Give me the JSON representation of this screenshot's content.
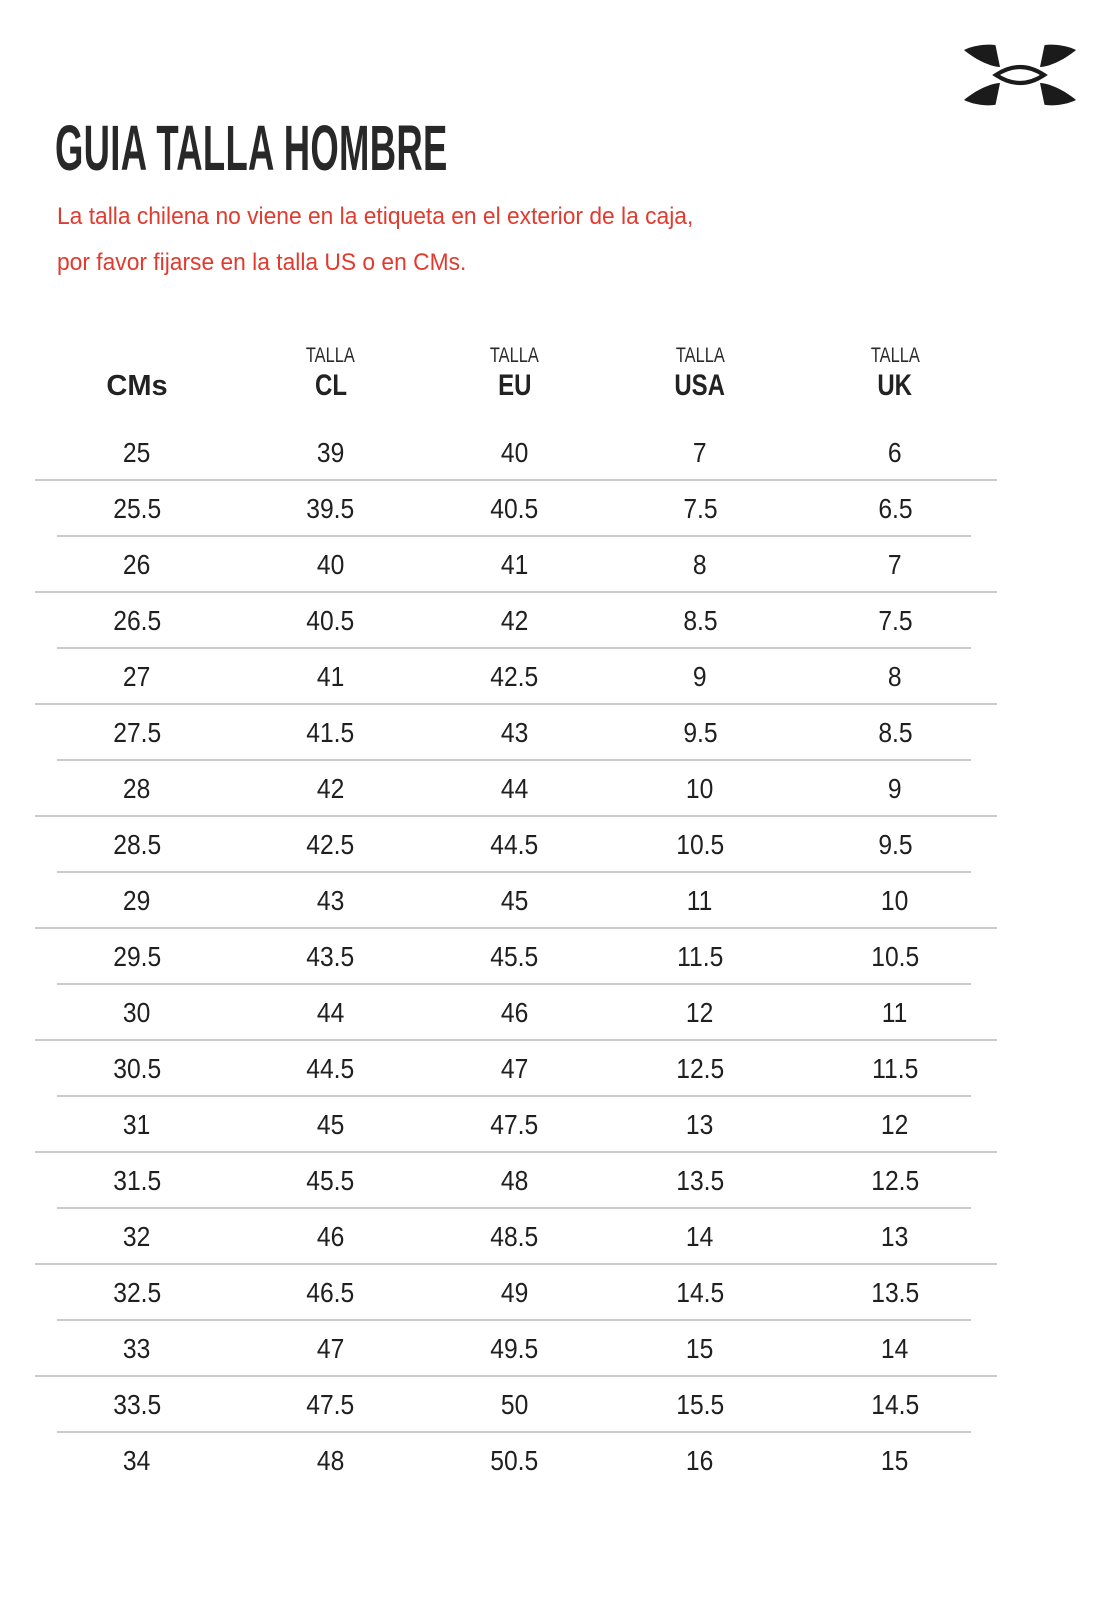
{
  "brand": {
    "logo_name": "Under Armour",
    "logo_color": "#1b1b1b"
  },
  "title": "GUIA TALLA HOMBRE",
  "notice": {
    "line1": "La talla chilena no viene en la etiqueta en el exterior de la caja,",
    "line2": "por favor fijarse en la talla US o en CMs.",
    "color": "#e13b30"
  },
  "size_table": {
    "columns": [
      {
        "group": "",
        "label": "CMs"
      },
      {
        "group": "TALLA",
        "label": "CL"
      },
      {
        "group": "TALLA",
        "label": "EU"
      },
      {
        "group": "TALLA",
        "label": "USA"
      },
      {
        "group": "TALLA",
        "label": "UK"
      }
    ],
    "rows": [
      [
        "25",
        "39",
        "40",
        "7",
        "6"
      ],
      [
        "25.5",
        "39.5",
        "40.5",
        "7.5",
        "6.5"
      ],
      [
        "26",
        "40",
        "41",
        "8",
        "7"
      ],
      [
        "26.5",
        "40.5",
        "42",
        "8.5",
        "7.5"
      ],
      [
        "27",
        "41",
        "42.5",
        "9",
        "8"
      ],
      [
        "27.5",
        "41.5",
        "43",
        "9.5",
        "8.5"
      ],
      [
        "28",
        "42",
        "44",
        "10",
        "9"
      ],
      [
        "28.5",
        "42.5",
        "44.5",
        "10.5",
        "9.5"
      ],
      [
        "29",
        "43",
        "45",
        "11",
        "10"
      ],
      [
        "29.5",
        "43.5",
        "45.5",
        "11.5",
        "10.5"
      ],
      [
        "30",
        "44",
        "46",
        "12",
        "11"
      ],
      [
        "30.5",
        "44.5",
        "47",
        "12.5",
        "11.5"
      ],
      [
        "31",
        "45",
        "47.5",
        "13",
        "12"
      ],
      [
        "31.5",
        "45.5",
        "48",
        "13.5",
        "12.5"
      ],
      [
        "32",
        "46",
        "48.5",
        "14",
        "13"
      ],
      [
        "32.5",
        "46.5",
        "49",
        "14.5",
        "13.5"
      ],
      [
        "33",
        "47",
        "49.5",
        "15",
        "14"
      ],
      [
        "33.5",
        "47.5",
        "50",
        "15.5",
        "14.5"
      ],
      [
        "34",
        "48",
        "50.5",
        "16",
        "15"
      ]
    ],
    "divider_color": "#cbcbcb"
  }
}
